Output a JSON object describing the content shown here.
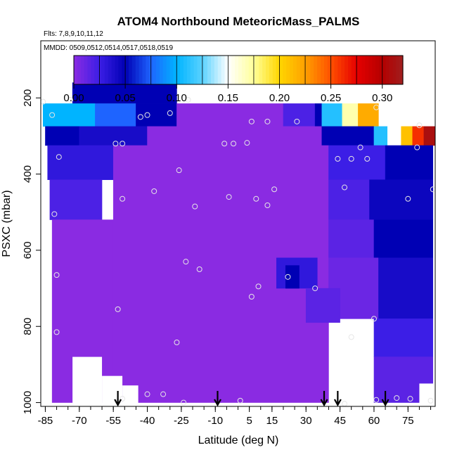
{
  "chart_data": {
    "type": "heatmap",
    "title": "ATOM4 Northbound MeteoricMass_PALMS",
    "flights_text": "Flts: 7,8,9,10,11,12",
    "dates_text": "MMDD: 0509,0512,0514,0517,0518,0519",
    "xlabel": "Latitude (deg N)",
    "ylabel": "PSXC (mbar)",
    "xlim": [
      -87,
      87
    ],
    "ylim": [
      1010,
      50
    ],
    "x_ticks": [
      -85,
      -70,
      -55,
      -40,
      -25,
      -10,
      5,
      15,
      30,
      45,
      60,
      75
    ],
    "x_tick_labels": [
      "-85",
      "-70",
      "-55",
      "-40",
      "-25",
      "-10",
      "5",
      "15",
      "30",
      "45",
      "60",
      "75"
    ],
    "y_ticks": [
      200,
      400,
      600,
      800,
      1000
    ],
    "y_tick_labels": [
      "200",
      "400",
      "600",
      "800",
      "1000"
    ],
    "colorbar": {
      "min": 0.0,
      "max": 0.32,
      "ticks": [
        0.0,
        0.05,
        0.1,
        0.15,
        0.2,
        0.25,
        0.3
      ],
      "tick_labels": [
        "0.00",
        "0.05",
        "0.10",
        "0.15",
        "0.20",
        "0.25",
        "0.30"
      ],
      "stops": [
        {
          "v": 0.0,
          "color": "#8a2be2"
        },
        {
          "v": 0.025,
          "color": "#3c1ee6"
        },
        {
          "v": 0.05,
          "color": "#0000b4"
        },
        {
          "v": 0.075,
          "color": "#1e64ff"
        },
        {
          "v": 0.1,
          "color": "#00b4ff"
        },
        {
          "v": 0.125,
          "color": "#5ad2ff"
        },
        {
          "v": 0.15,
          "color": "#ffffff"
        },
        {
          "v": 0.175,
          "color": "#ffff9a"
        },
        {
          "v": 0.2,
          "color": "#ffd700"
        },
        {
          "v": 0.225,
          "color": "#ffa000"
        },
        {
          "v": 0.25,
          "color": "#ff5000"
        },
        {
          "v": 0.275,
          "color": "#e60000"
        },
        {
          "v": 0.3,
          "color": "#b40000"
        },
        {
          "v": 0.32,
          "color": "#a01e1e"
        }
      ]
    },
    "regions": [
      {
        "x": [
          -73,
          -27
        ],
        "p": [
          160,
          215
        ],
        "v": 0.05
      },
      {
        "x": [
          -86,
          -63
        ],
        "p": [
          215,
          275
        ],
        "v": 0.1
      },
      {
        "x": [
          -63,
          -45
        ],
        "p": [
          215,
          275
        ],
        "v": 0.075
      },
      {
        "x": [
          -45,
          -27
        ],
        "p": [
          215,
          275
        ],
        "v": 0.05
      },
      {
        "x": [
          -27,
          20
        ],
        "p": [
          215,
          275
        ],
        "v": 0.0
      },
      {
        "x": [
          20,
          34
        ],
        "p": [
          215,
          275
        ],
        "v": 0.02
      },
      {
        "x": [
          34,
          37
        ],
        "p": [
          215,
          275
        ],
        "v": 0.05
      },
      {
        "x": [
          37,
          46
        ],
        "p": [
          215,
          275
        ],
        "v": 0.11
      },
      {
        "x": [
          46,
          53
        ],
        "p": [
          215,
          275
        ],
        "v": 0.17
      },
      {
        "x": [
          53,
          62
        ],
        "p": [
          215,
          275
        ],
        "v": 0.22
      },
      {
        "x": [
          -85,
          -70
        ],
        "p": [
          275,
          325
        ],
        "v": 0.05
      },
      {
        "x": [
          -70,
          -40
        ],
        "p": [
          275,
          325
        ],
        "v": 0.04
      },
      {
        "x": [
          -40,
          37
        ],
        "p": [
          275,
          325
        ],
        "v": 0.0
      },
      {
        "x": [
          37,
          60
        ],
        "p": [
          275,
          325
        ],
        "v": 0.05
      },
      {
        "x": [
          60,
          66
        ],
        "p": [
          275,
          325
        ],
        "v": 0.11
      },
      {
        "x": [
          66,
          72
        ],
        "p": [
          275,
          325
        ],
        "v": 0.15
      },
      {
        "x": [
          72,
          77
        ],
        "p": [
          275,
          325
        ],
        "v": 0.21
      },
      {
        "x": [
          77,
          82
        ],
        "p": [
          275,
          325
        ],
        "v": 0.26
      },
      {
        "x": [
          82,
          87
        ],
        "p": [
          275,
          325
        ],
        "v": 0.31
      },
      {
        "x": [
          -84,
          -55
        ],
        "p": [
          325,
          415
        ],
        "v": 0.03
      },
      {
        "x": [
          -55,
          40
        ],
        "p": [
          325,
          1000
        ],
        "v": 0.0
      },
      {
        "x": [
          40,
          65
        ],
        "p": [
          325,
          415
        ],
        "v": 0.025
      },
      {
        "x": [
          65,
          86
        ],
        "p": [
          325,
          415
        ],
        "v": 0.05
      },
      {
        "x": [
          -83,
          -60
        ],
        "p": [
          415,
          520
        ],
        "v": 0.02
      },
      {
        "x": [
          40,
          58
        ],
        "p": [
          415,
          520
        ],
        "v": 0.02
      },
      {
        "x": [
          58,
          86
        ],
        "p": [
          415,
          520
        ],
        "v": 0.045
      },
      {
        "x": [
          -82,
          -55
        ],
        "p": [
          520,
          1000
        ],
        "v": 0.0
      },
      {
        "x": [
          40,
          60
        ],
        "p": [
          520,
          620
        ],
        "v": 0.015
      },
      {
        "x": [
          60,
          86
        ],
        "p": [
          520,
          620
        ],
        "v": 0.05
      },
      {
        "x": [
          17,
          35
        ],
        "p": [
          620,
          700
        ],
        "v": 0.03
      },
      {
        "x": [
          21,
          27
        ],
        "p": [
          640,
          700
        ],
        "v": 0.05
      },
      {
        "x": [
          40,
          62
        ],
        "p": [
          620,
          780
        ],
        "v": 0.01
      },
      {
        "x": [
          62,
          86
        ],
        "p": [
          620,
          780
        ],
        "v": 0.04
      },
      {
        "x": [
          30,
          45
        ],
        "p": [
          700,
          790
        ],
        "v": 0.015
      },
      {
        "x": [
          60,
          86
        ],
        "p": [
          780,
          880
        ],
        "v": 0.025
      },
      {
        "x": [
          60,
          86
        ],
        "p": [
          880,
          1000
        ],
        "v": 0.015
      }
    ],
    "white_areas": [
      {
        "x": [
          -73,
          -60
        ],
        "p": [
          880,
          1010
        ]
      },
      {
        "x": [
          -60,
          -51
        ],
        "p": [
          930,
          1010
        ]
      },
      {
        "x": [
          -51,
          -44
        ],
        "p": [
          955,
          1010
        ]
      },
      {
        "x": [
          80,
          87
        ],
        "p": [
          950,
          1010
        ]
      }
    ],
    "points": [
      {
        "lat": -86,
        "p": 210
      },
      {
        "lat": -74,
        "p": 205
      },
      {
        "lat": -82,
        "p": 245
      },
      {
        "lat": -40,
        "p": 245
      },
      {
        "lat": -43,
        "p": 250
      },
      {
        "lat": -30,
        "p": 240
      },
      {
        "lat": -22,
        "p": 205
      },
      {
        "lat": -54,
        "p": 320
      },
      {
        "lat": -51,
        "p": 320
      },
      {
        "lat": -79,
        "p": 355
      },
      {
        "lat": -26,
        "p": 390
      },
      {
        "lat": -37,
        "p": 445
      },
      {
        "lat": -51,
        "p": 465
      },
      {
        "lat": -19,
        "p": 485
      },
      {
        "lat": -81,
        "p": 505
      },
      {
        "lat": -6,
        "p": 320
      },
      {
        "lat": -2,
        "p": 320
      },
      {
        "lat": 4,
        "p": 318
      },
      {
        "lat": 6,
        "p": 262
      },
      {
        "lat": 13,
        "p": 262
      },
      {
        "lat": 26,
        "p": 262
      },
      {
        "lat": -4,
        "p": 460
      },
      {
        "lat": 8,
        "p": 465
      },
      {
        "lat": 16,
        "p": 440
      },
      {
        "lat": 13,
        "p": 482
      },
      {
        "lat": 44,
        "p": 360
      },
      {
        "lat": 50,
        "p": 360
      },
      {
        "lat": 54,
        "p": 330
      },
      {
        "lat": 57,
        "p": 360
      },
      {
        "lat": 47,
        "p": 435
      },
      {
        "lat": 80,
        "p": 272
      },
      {
        "lat": 79,
        "p": 330
      },
      {
        "lat": 86,
        "p": 440
      },
      {
        "lat": 75,
        "p": 465
      },
      {
        "lat": -23,
        "p": 630
      },
      {
        "lat": -17,
        "p": 650
      },
      {
        "lat": -80,
        "p": 665
      },
      {
        "lat": 9,
        "p": 695
      },
      {
        "lat": 6,
        "p": 722
      },
      {
        "lat": 22,
        "p": 670
      },
      {
        "lat": 34,
        "p": 700
      },
      {
        "lat": -53,
        "p": 755
      },
      {
        "lat": 60,
        "p": 780
      },
      {
        "lat": 50,
        "p": 828
      },
      {
        "lat": -80,
        "p": 815
      },
      {
        "lat": -27,
        "p": 842
      },
      {
        "lat": -40,
        "p": 978
      },
      {
        "lat": -33,
        "p": 978
      },
      {
        "lat": -51,
        "p": 990
      },
      {
        "lat": -53,
        "p": 998
      },
      {
        "lat": -24,
        "p": 1000
      },
      {
        "lat": 1,
        "p": 995
      },
      {
        "lat": 47,
        "p": 1003
      },
      {
        "lat": 61,
        "p": 993
      },
      {
        "lat": 70,
        "p": 988
      },
      {
        "lat": 76,
        "p": 990
      },
      {
        "lat": 85,
        "p": 995
      },
      {
        "lat": 61,
        "p": 225
      }
    ],
    "arrows": [
      -53,
      -9,
      38,
      44,
      65
    ]
  }
}
